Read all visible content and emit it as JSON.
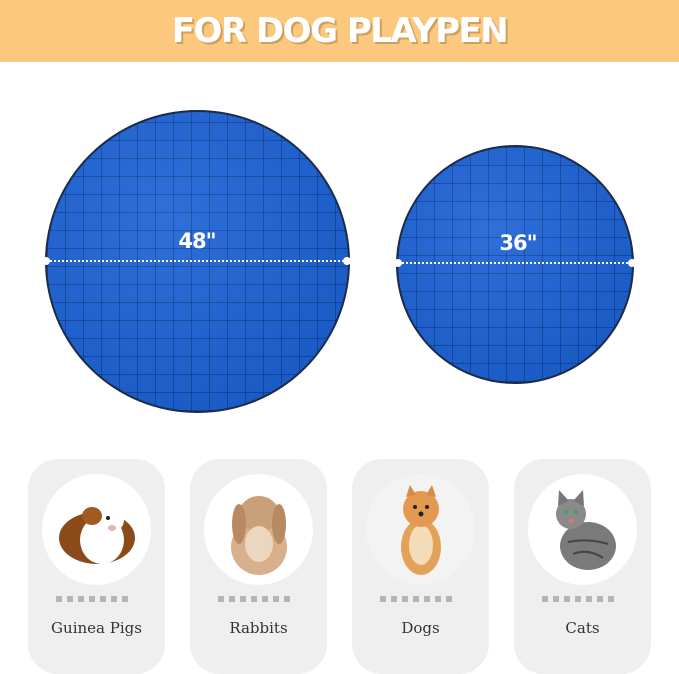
{
  "banner": {
    "title": "FOR DOG PLAYPEN",
    "background_color": "#fbc87e"
  },
  "mats": [
    {
      "size_label": "48\"",
      "color": "#1d63d6"
    },
    {
      "size_label": "36\"",
      "color": "#1d63d6"
    }
  ],
  "pets": [
    {
      "label": "Guinea Pigs",
      "icon": "guinea-pig-photo"
    },
    {
      "label": "Rabbits",
      "icon": "rabbit-photo"
    },
    {
      "label": "Dogs",
      "icon": "dog-photo"
    },
    {
      "label": "Cats",
      "icon": "cat-photo"
    }
  ]
}
